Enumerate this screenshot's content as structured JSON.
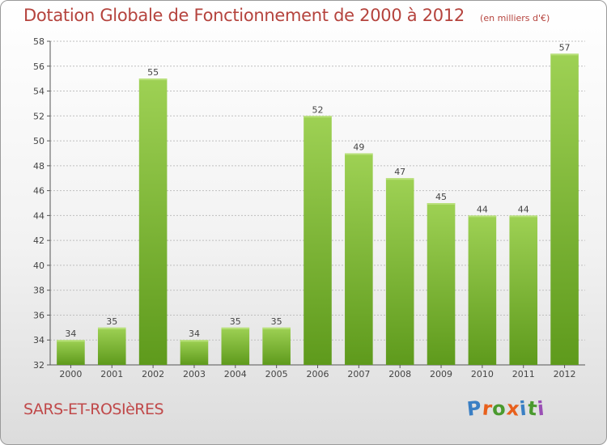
{
  "title": "Dotation Globale de Fonctionnement de 2000 à 2012",
  "unit_note": "(en milliers d'€)",
  "commune": "SARS-ET-ROSIèRES",
  "logo": {
    "letters": [
      "P",
      "r",
      "o",
      "x",
      "i",
      "t",
      "i"
    ],
    "colors": [
      "#3a7fc4",
      "#e8601c",
      "#4a9a2e",
      "#e8601c",
      "#3a7fc4",
      "#4a9a2e",
      "#9a4fb5"
    ]
  },
  "colors": {
    "bar_top": "#9ed154",
    "bar_bottom": "#5e9a1c",
    "axis": "#555555",
    "grid": "#bfbfbf",
    "text": "#444444"
  },
  "chart_data": {
    "type": "bar",
    "categories": [
      "2000",
      "2001",
      "2002",
      "2003",
      "2004",
      "2005",
      "2006",
      "2007",
      "2008",
      "2009",
      "2010",
      "2011",
      "2012"
    ],
    "values": [
      34,
      35,
      55,
      34,
      35,
      35,
      52,
      49,
      47,
      45,
      44,
      44,
      57
    ],
    "ylim": [
      32,
      58
    ],
    "yticks": [
      32,
      34,
      36,
      38,
      40,
      42,
      44,
      46,
      48,
      50,
      52,
      54,
      56,
      58
    ],
    "grid": true,
    "legend": "none"
  }
}
